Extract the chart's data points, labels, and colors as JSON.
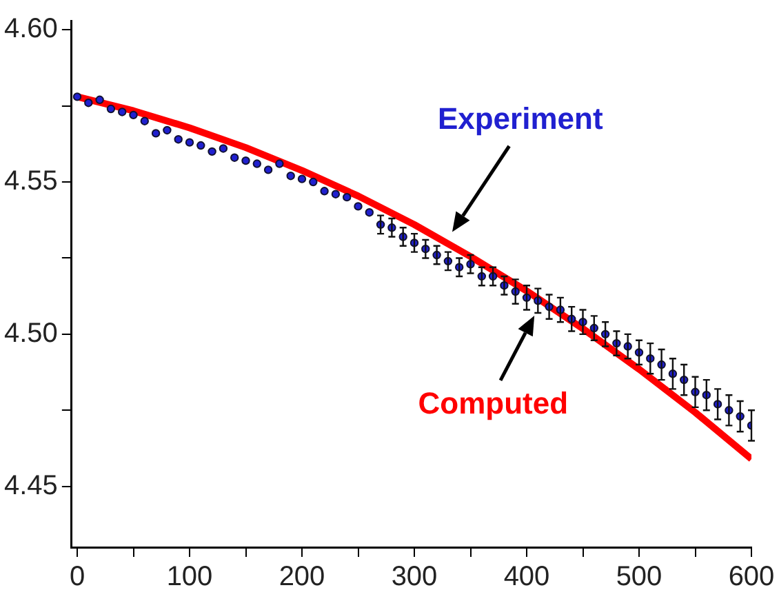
{
  "chart_data": {
    "type": "scatter",
    "xlim": [
      -5,
      600
    ],
    "ylim": [
      4.43,
      4.603
    ],
    "xticks": [
      0,
      {
        "value": 50,
        "label": null
      },
      100,
      {
        "value": 150,
        "label": null
      },
      200,
      {
        "value": 250,
        "label": null
      },
      300,
      {
        "value": 350,
        "label": null
      },
      400,
      {
        "value": 450,
        "label": null
      },
      500,
      {
        "value": 550,
        "label": null
      },
      600
    ],
    "yticks": [
      4.45,
      {
        "value": 4.475,
        "label": null
      },
      {
        "value": 4.5,
        "label": "4.50"
      },
      {
        "value": 4.525,
        "label": null
      },
      4.55,
      {
        "value": 4.575,
        "label": null
      },
      {
        "value": 4.6,
        "label": "4.60"
      }
    ],
    "grid": false,
    "legend": false,
    "series": [
      {
        "name": "Computed",
        "type": "line",
        "color": "#ff0000",
        "marker": "none",
        "x": [
          0,
          50,
          100,
          150,
          200,
          250,
          300,
          350,
          400,
          450,
          500,
          550,
          600
        ],
        "values": [
          4.578,
          4.5734,
          4.5678,
          4.5613,
          4.5538,
          4.5454,
          4.536,
          4.5255,
          4.5142,
          4.5018,
          4.4885,
          4.4743,
          4.459
        ]
      },
      {
        "name": "Experiment",
        "type": "scatter",
        "color": "#2020d0",
        "marker": "circle",
        "x": [
          0,
          10,
          20,
          30,
          40,
          50,
          60,
          70,
          80,
          90,
          100,
          110,
          120,
          130,
          140,
          150,
          160,
          170,
          180,
          190,
          200,
          210,
          220,
          230,
          240,
          250,
          260,
          270,
          280,
          290,
          300,
          310,
          320,
          330,
          340,
          350,
          360,
          370,
          380,
          390,
          400,
          410,
          420,
          430,
          440,
          450,
          460,
          470,
          480,
          490,
          500,
          510,
          520,
          530,
          540,
          550,
          560,
          570,
          580,
          590,
          600
        ],
        "values": [
          4.578,
          4.576,
          4.577,
          4.574,
          4.573,
          4.572,
          4.57,
          4.566,
          4.567,
          4.564,
          4.563,
          4.562,
          4.56,
          4.561,
          4.558,
          4.557,
          4.556,
          4.554,
          4.556,
          4.552,
          4.551,
          4.55,
          4.547,
          4.546,
          4.545,
          4.542,
          4.54,
          4.536,
          4.535,
          4.532,
          4.53,
          4.528,
          4.526,
          4.524,
          4.522,
          4.523,
          4.519,
          4.519,
          4.516,
          4.514,
          4.512,
          4.511,
          4.509,
          4.508,
          4.505,
          4.504,
          4.502,
          4.5,
          4.497,
          4.496,
          4.494,
          4.492,
          4.49,
          4.487,
          4.485,
          4.481,
          4.48,
          4.477,
          4.475,
          4.473,
          4.47
        ],
        "errors": [
          null,
          null,
          null,
          null,
          null,
          null,
          null,
          null,
          null,
          null,
          null,
          null,
          null,
          null,
          null,
          null,
          null,
          null,
          null,
          null,
          null,
          null,
          null,
          null,
          null,
          null,
          null,
          0.003,
          0.003,
          0.003,
          0.003,
          0.003,
          0.003,
          0.003,
          0.003,
          0.003,
          0.003,
          0.003,
          0.003,
          0.004,
          0.004,
          0.004,
          0.004,
          0.004,
          0.004,
          0.004,
          0.004,
          0.004,
          0.004,
          0.004,
          0.004,
          0.005,
          0.005,
          0.005,
          0.005,
          0.005,
          0.005,
          0.005,
          0.005,
          0.005,
          0.005
        ]
      }
    ]
  }
}
